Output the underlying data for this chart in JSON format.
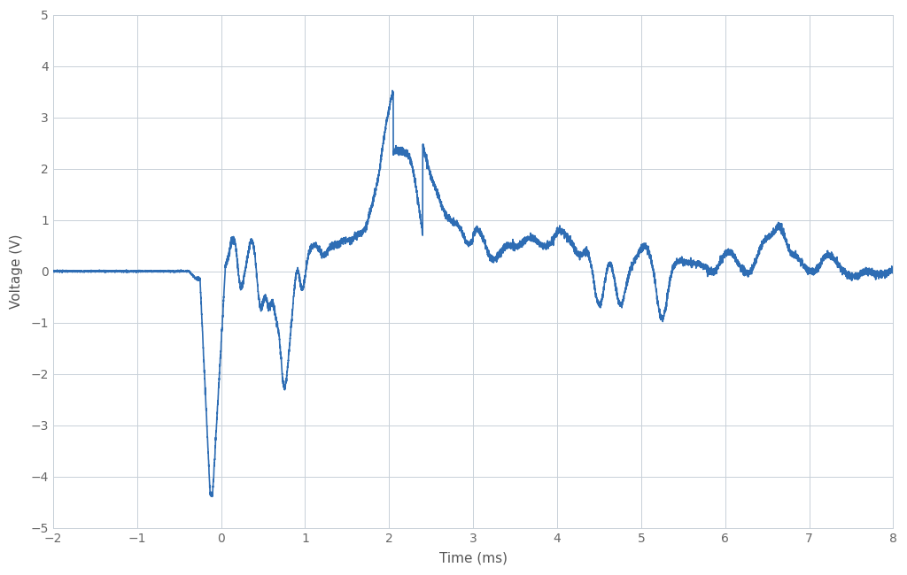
{
  "xlabel": "Time (ms)",
  "ylabel": "Voltage (V)",
  "xlim": [
    -2,
    8
  ],
  "ylim": [
    -5,
    5
  ],
  "xticks": [
    -2,
    -1,
    0,
    1,
    2,
    3,
    4,
    5,
    6,
    7,
    8
  ],
  "yticks": [
    -5,
    -4,
    -3,
    -2,
    -1,
    0,
    1,
    2,
    3,
    4,
    5
  ],
  "line_color": "#2e6db4",
  "line_width": 1.2,
  "background_color": "#ffffff",
  "grid_color": "#c8d0d8",
  "spine_color": "#c8d0d8"
}
